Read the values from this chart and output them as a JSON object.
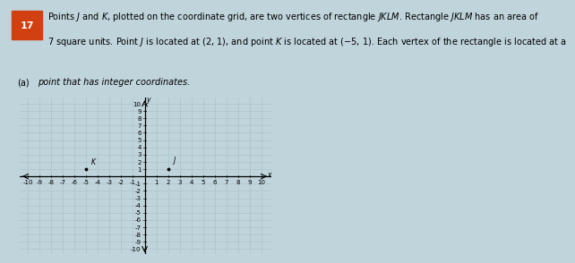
{
  "title_num": "17",
  "title_text_line1": "Points $J$ and $K$, plotted on the coordinate grid, are two vertices of rectangle $JKLM$. Rectangle $JKLM$ has an area of",
  "title_text_line2": "7 square units. Point $J$ is located at (2, 1), and point $K$ is located at (−5, 1). Each vertex of the rectangle is located at a",
  "label_a_prefix": "(a)",
  "label_a_text": "point that has integer coordinates.",
  "point_J": [
    2,
    1
  ],
  "point_K": [
    -5,
    1
  ],
  "label_J": "$J$",
  "label_K": "$K$",
  "x_min": -10,
  "x_max": 10,
  "y_min": -10,
  "y_max": 10,
  "grid_color": "#a8bfc4",
  "grid_color2": "#c8dde0",
  "axis_color": "#000000",
  "point_color": "#000000",
  "bg_color": "#ccdde0",
  "outer_bg": "#c0d4dc",
  "text_color": "#000000",
  "font_size_text": 7.0,
  "tick_fontsize": 5.0,
  "badge_color": "#d04010"
}
